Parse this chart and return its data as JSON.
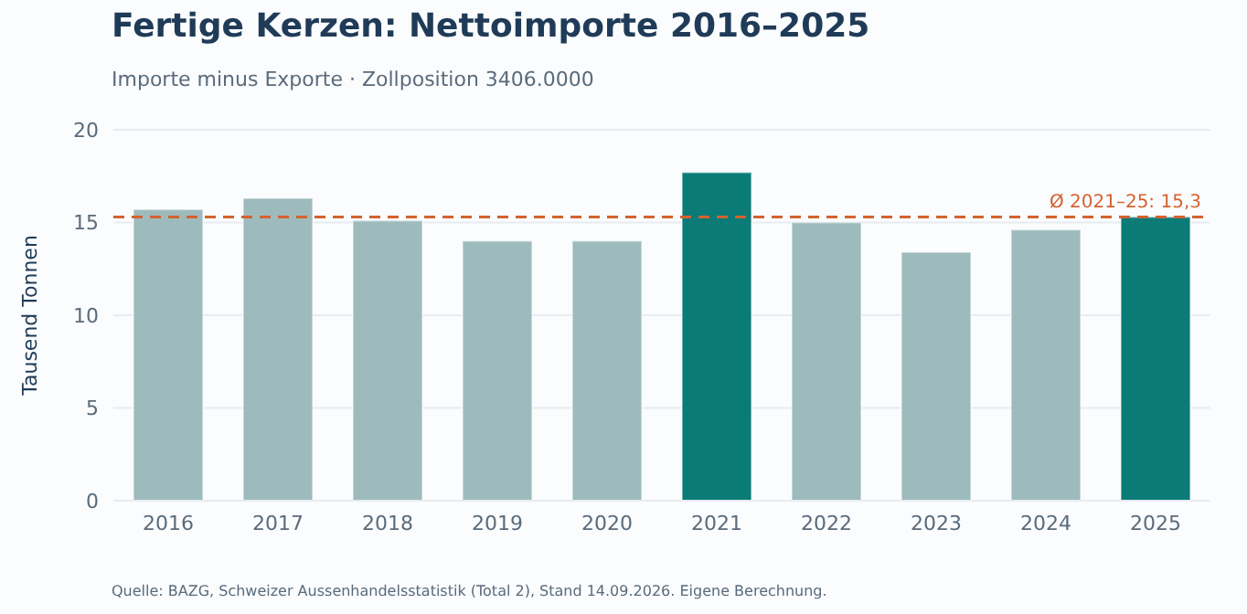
{
  "chart_data": {
    "type": "bar",
    "title": "Fertige Kerzen: Nettoimporte 2016–2025",
    "subtitle": "Importe minus Exporte · Zollposition 3406.0000",
    "ylabel": "Tausend Tonnen",
    "categories": [
      "2016",
      "2017",
      "2018",
      "2019",
      "2020",
      "2021",
      "2022",
      "2023",
      "2024",
      "2025"
    ],
    "values": [
      15.7,
      16.3,
      15.1,
      14.0,
      14.0,
      17.7,
      15.0,
      13.4,
      14.6,
      15.3
    ],
    "colors": [
      "#9dbbbd",
      "#9dbbbd",
      "#9dbbbd",
      "#9dbbbd",
      "#9dbbbd",
      "#0b7b78",
      "#9dbbbd",
      "#9dbbbd",
      "#9dbbbd",
      "#0b7b78"
    ],
    "ylim": [
      0,
      20
    ],
    "yticks": [
      0,
      5,
      10,
      15,
      20
    ],
    "grid": "y",
    "ref_lines": [
      {
        "axis": "y",
        "value": 15.3,
        "label": "Ø 2021–25: 15,3",
        "color": "#d4622f",
        "line_style": "dashed"
      }
    ],
    "annotations": [
      "Quelle: BAZG, Schweizer Aussenhandelsstatistik (Total 2), Stand 14.09.2026. Eigene Berechnung."
    ]
  }
}
